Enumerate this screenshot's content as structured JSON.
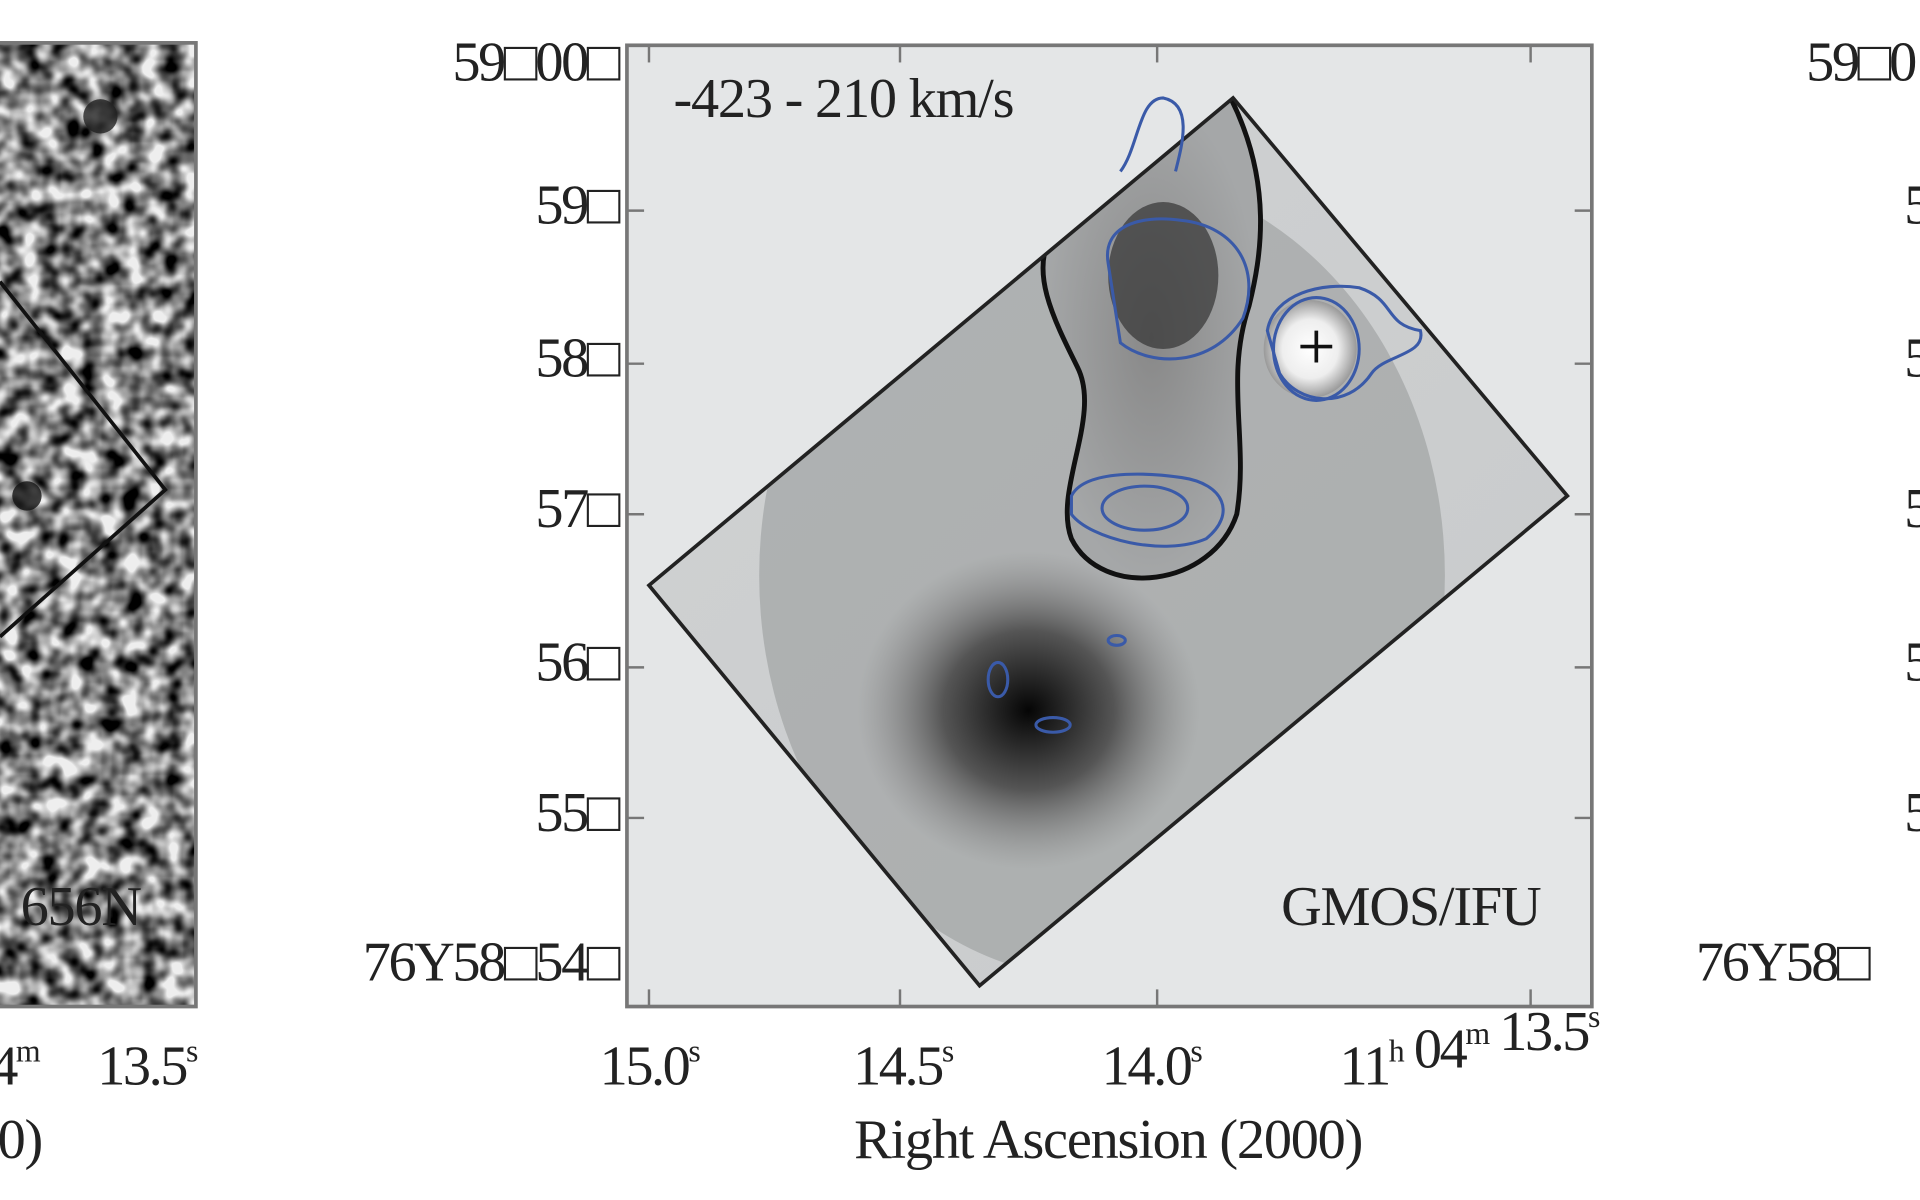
{
  "left_panel": {
    "filter_label": "656N",
    "x_tick_labels": [
      [
        {
          "text": "4",
          "sup": "m"
        }
      ],
      [
        {
          "text": "13.5",
          "sup": "s"
        }
      ]
    ],
    "x_axis_label": "0)"
  },
  "center_panel": {
    "velocity_range": "-423 - 210 km/s",
    "instrument": "GMOS/IFU",
    "y_tick_labels": [
      "59□00□",
      "59□",
      "58□",
      "57□",
      "56□",
      "55□",
      "76Y58□54□"
    ],
    "x_tick_labels": [
      [
        {
          "text": "15.0",
          "sup": "s"
        }
      ],
      [
        {
          "text": "14.5",
          "sup": "s"
        }
      ],
      [
        {
          "text": "14.0",
          "sup": "s"
        }
      ],
      [
        {
          "text": "11",
          "sup": "h"
        },
        {
          "text": " 04",
          "sup": "m"
        },
        {
          "text": " 13.5",
          "sup": "s"
        }
      ]
    ],
    "x_axis_label": "Right Ascension (2000)"
  },
  "right_panel": {
    "y_tick_labels": [
      "59□0",
      "5",
      "5",
      "5",
      "5",
      "5",
      "76Y58□"
    ]
  }
}
